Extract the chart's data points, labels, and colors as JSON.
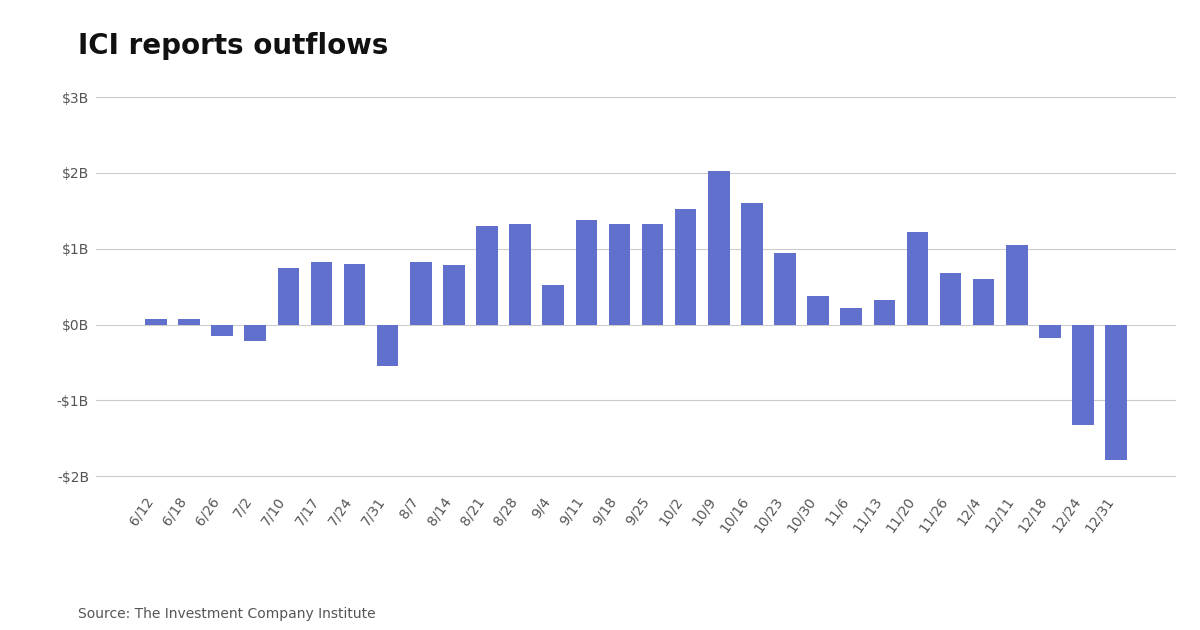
{
  "title": "ICI reports outflows",
  "source": "Source: The Investment Company Institute",
  "bar_color": "#6070cc",
  "background_color": "#ffffff",
  "grid_color": "#cccccc",
  "categories": [
    "6/12",
    "6/18",
    "6/26",
    "7/2",
    "7/10",
    "7/17",
    "7/24",
    "7/31",
    "8/7",
    "8/14",
    "8/21",
    "8/28",
    "9/4",
    "9/11",
    "9/18",
    "9/25",
    "10/2",
    "10/9",
    "10/16",
    "10/23",
    "10/30",
    "11/6",
    "11/13",
    "11/20",
    "11/26",
    "12/4",
    "12/11",
    "12/18",
    "12/24",
    "12/31"
  ],
  "values": [
    0.08,
    0.08,
    -0.15,
    -0.22,
    0.75,
    0.82,
    0.8,
    -0.55,
    0.82,
    0.78,
    1.3,
    1.32,
    0.52,
    1.38,
    1.32,
    1.32,
    1.52,
    2.02,
    1.6,
    0.95,
    0.38,
    0.22,
    0.32,
    1.22,
    0.68,
    0.6,
    1.05,
    -0.18,
    -1.32,
    -1.78
  ],
  "ylim": [
    -2.2,
    3.2
  ],
  "yticks": [
    -2.0,
    -1.0,
    0.0,
    1.0,
    2.0,
    3.0
  ],
  "ytick_labels": [
    "-$2B",
    "-$1B",
    "$0B",
    "$1B",
    "$2B",
    "$3B"
  ],
  "title_fontsize": 20,
  "tick_fontsize": 10,
  "source_fontsize": 10
}
